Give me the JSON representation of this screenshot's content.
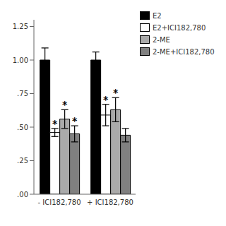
{
  "chart_data": {
    "type": "bar",
    "categories": [
      "- ICI182,780",
      "+ ICI182,780"
    ],
    "series": [
      {
        "name": "E2",
        "color": "#000000",
        "values": [
          1.0,
          1.0
        ],
        "errors": [
          0.09,
          0.06
        ],
        "sig_markers": [
          false,
          false
        ]
      },
      {
        "name": "E2+ICI182,780",
        "color": "#ffffff",
        "values": [
          0.46,
          0.59
        ],
        "errors": [
          0.03,
          0.08
        ],
        "sig_markers": [
          true,
          true
        ]
      },
      {
        "name": "2-ME",
        "color": "#aaaaaa",
        "values": [
          0.56,
          0.63
        ],
        "errors": [
          0.07,
          0.09
        ],
        "sig_markers": [
          true,
          true
        ]
      },
      {
        "name": "2-ME+ICI182,780",
        "color": "#808080",
        "values": [
          0.45,
          0.44
        ],
        "errors": [
          0.06,
          0.05
        ],
        "sig_markers": [
          true,
          false
        ]
      }
    ],
    "annotation": "*",
    "ylim": [
      0.0,
      1.3
    ],
    "yticks": [
      {
        "value": 0.0,
        "label": ".00"
      },
      {
        "value": 0.25,
        "label": ".25"
      },
      {
        "value": 0.5,
        "label": ".50"
      },
      {
        "value": 0.75,
        "label": ".75"
      },
      {
        "value": 1.0,
        "label": "1.00"
      },
      {
        "value": 1.25,
        "label": "1.25"
      }
    ],
    "grid": false,
    "legend": "upper right"
  }
}
